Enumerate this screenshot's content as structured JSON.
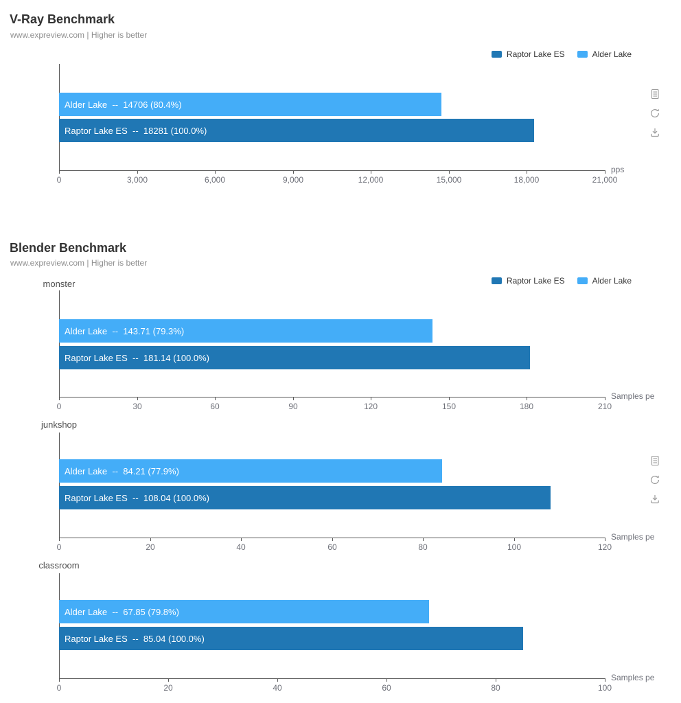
{
  "colors": {
    "raptor_lake_es": "#2077b4",
    "alder_lake": "#44adf8",
    "axis_line": "#5b5b5b",
    "tick_label": "#6e7079",
    "title_text": "#333333",
    "subtitle_text": "#8f8f8f",
    "bar_label_text": "#ffffff",
    "toolbox_icon": "#9a9a9a"
  },
  "legend": {
    "items": [
      {
        "label": "Raptor Lake ES",
        "color": "#2077b4"
      },
      {
        "label": "Alder Lake",
        "color": "#44adf8"
      }
    ]
  },
  "toolbox": {
    "icons": [
      {
        "name": "data-view"
      },
      {
        "name": "restore"
      },
      {
        "name": "save-as-image"
      }
    ]
  },
  "chart_data": [
    {
      "type": "bar",
      "orientation": "horizontal",
      "title": "V-Ray Benchmark",
      "subtitle": "www.expreview.com | Higher is better",
      "xlabel": "pps",
      "xlim": [
        0,
        21000
      ],
      "xticks": [
        0,
        3000,
        6000,
        9000,
        12000,
        15000,
        18000,
        21000
      ],
      "xtick_labels": [
        "0",
        "3,000",
        "6,000",
        "9,000",
        "12,000",
        "15,000",
        "18,000",
        "21,000"
      ],
      "legend_entries": [
        "Raptor Lake ES",
        "Alder Lake"
      ],
      "series": [
        {
          "name": "Alder Lake",
          "value": 14706,
          "percent_of_max": "80.4%",
          "bar_label": "Alder Lake  --  14706 (80.4%)",
          "color": "#44adf8"
        },
        {
          "name": "Raptor Lake ES",
          "value": 18281,
          "percent_of_max": "100.0%",
          "bar_label": "Raptor Lake ES  --  18281 (100.0%)",
          "color": "#2077b4"
        }
      ]
    },
    {
      "type": "bar",
      "orientation": "horizontal",
      "title": "Blender Benchmark",
      "subtitle": "www.expreview.com | Higher is better",
      "xlabel": "Samples pe",
      "legend_entries": [
        "Raptor Lake ES",
        "Alder Lake"
      ],
      "subcharts": [
        {
          "category": "monster",
          "xlim": [
            0,
            210
          ],
          "xticks": [
            0,
            30,
            60,
            90,
            120,
            150,
            180,
            210
          ],
          "xtick_labels": [
            "0",
            "30",
            "60",
            "90",
            "120",
            "150",
            "180",
            "210"
          ],
          "series": [
            {
              "name": "Alder Lake",
              "value": 143.71,
              "percent_of_max": "79.3%",
              "bar_label": "Alder Lake  --  143.71 (79.3%)",
              "color": "#44adf8"
            },
            {
              "name": "Raptor Lake ES",
              "value": 181.14,
              "percent_of_max": "100.0%",
              "bar_label": "Raptor Lake ES  --  181.14 (100.0%)",
              "color": "#2077b4"
            }
          ]
        },
        {
          "category": "junkshop",
          "xlim": [
            0,
            120
          ],
          "xticks": [
            0,
            20,
            40,
            60,
            80,
            100,
            120
          ],
          "xtick_labels": [
            "0",
            "20",
            "40",
            "60",
            "80",
            "100",
            "120"
          ],
          "series": [
            {
              "name": "Alder Lake",
              "value": 84.21,
              "percent_of_max": "77.9%",
              "bar_label": "Alder Lake  --  84.21 (77.9%)",
              "color": "#44adf8"
            },
            {
              "name": "Raptor Lake ES",
              "value": 108.04,
              "percent_of_max": "100.0%",
              "bar_label": "Raptor Lake ES  --  108.04 (100.0%)",
              "color": "#2077b4"
            }
          ]
        },
        {
          "category": "classroom",
          "xlim": [
            0,
            100
          ],
          "xticks": [
            0,
            20,
            40,
            60,
            80,
            100
          ],
          "xtick_labels": [
            "0",
            "20",
            "40",
            "60",
            "80",
            "100"
          ],
          "series": [
            {
              "name": "Alder Lake",
              "value": 67.85,
              "percent_of_max": "79.8%",
              "bar_label": "Alder Lake  --  67.85 (79.8%)",
              "color": "#44adf8"
            },
            {
              "name": "Raptor Lake ES",
              "value": 85.04,
              "percent_of_max": "100.0%",
              "bar_label": "Raptor Lake ES  --  85.04 (100.0%)",
              "color": "#2077b4"
            }
          ]
        }
      ]
    }
  ]
}
